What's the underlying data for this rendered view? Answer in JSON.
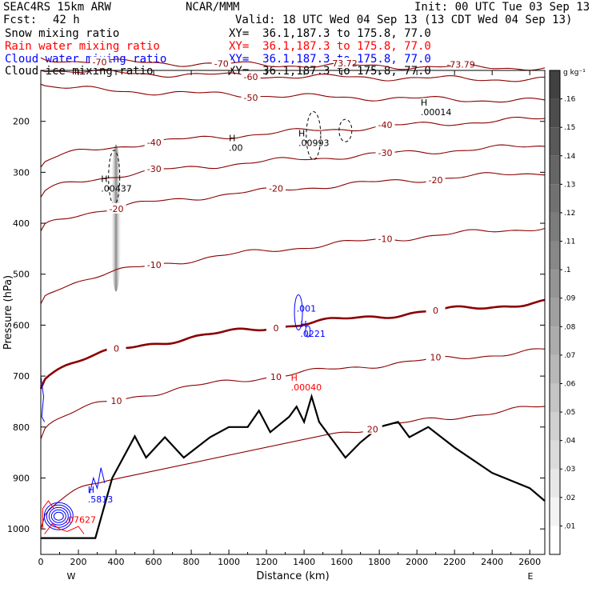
{
  "header": {
    "model": "SEAC4RS 15km ARW",
    "center": "NCAR/MMM",
    "init": "Init: 00 UTC Tue 03 Sep 13",
    "fcst_label": "Fcst:",
    "fcst_value": "42 h",
    "valid": "Valid: 18 UTC Wed 04 Sep 13 (13 CDT Wed 04 Sep 13)"
  },
  "fields": [
    {
      "name": "Snow mixing ratio",
      "xy": "XY=  36.1,187.3 to 175.8, 77.0",
      "color": "#000000"
    },
    {
      "name": "Rain water mixing ratio",
      "xy": "XY=  36.1,187.3 to 175.8, 77.0",
      "color": "#ff0000"
    },
    {
      "name": "Cloud water mixing ratio",
      "xy": "XY=  36.1,187.3 to 175.8, 77.0",
      "color": "#0000ff"
    },
    {
      "name": "Cloud ice mixing ratio",
      "xy": "XY=  36.1,187.3 to 175.8, 77.0",
      "color": "#000000"
    }
  ],
  "colorbar": {
    "unit": "g kg⁻¹",
    "ticks": [
      ".01",
      ".02",
      ".03",
      ".04",
      ".05",
      ".06",
      ".07",
      ".08",
      ".09",
      ".1",
      ".11",
      ".12",
      ".13",
      ".14",
      ".15",
      ".16"
    ]
  },
  "chart_data": {
    "type": "cross-section",
    "xlabel": "Distance (km)",
    "ylabel": "Pressure (hPa)",
    "xlim": [
      0,
      2680
    ],
    "ylim": [
      1050,
      100
    ],
    "x_ticks": [
      0,
      200,
      400,
      600,
      800,
      1000,
      1200,
      1400,
      1600,
      1800,
      2000,
      2200,
      2400,
      2600
    ],
    "y_ticks": [
      200,
      300,
      400,
      500,
      600,
      700,
      800,
      900,
      1000
    ],
    "x_end_labels": {
      "left": "W",
      "right": "E"
    },
    "temperature_isotherms_C": [
      {
        "T": -70,
        "p_left": 75,
        "p_right": 95,
        "labels": [
          "-70",
          "-70",
          "-73.72",
          "-73.79"
        ]
      },
      {
        "T": -60,
        "p_left": 95,
        "p_right": 118,
        "labels": [
          "-60"
        ]
      },
      {
        "T": -50,
        "p_left": 125,
        "p_right": 160,
        "labels": [
          "-50"
        ]
      },
      {
        "T": -40,
        "p_left": 290,
        "p_right": 195,
        "labels": [
          "-40",
          "-40"
        ]
      },
      {
        "T": -30,
        "p_left": 350,
        "p_right": 248,
        "labels": [
          "-30",
          "-30"
        ]
      },
      {
        "T": -20,
        "p_left": 420,
        "p_right": 300,
        "labels": [
          "-20",
          "-20",
          "-20"
        ]
      },
      {
        "T": -10,
        "p_left": 560,
        "p_right": 408,
        "labels": [
          "-10",
          "-10"
        ]
      },
      {
        "T": 0,
        "p_left": 720,
        "p_right": 555,
        "labels": [
          "0",
          "0",
          "0"
        ]
      },
      {
        "T": 10,
        "p_left": 820,
        "p_right": 650,
        "labels": [
          "10",
          "10",
          "10"
        ]
      },
      {
        "T": 20,
        "p_left": 1000,
        "p_right": 760,
        "labels": [
          "20"
        ]
      }
    ],
    "terrain_hPa": [
      [
        0,
        1018
      ],
      [
        290,
        1018
      ],
      [
        380,
        900
      ],
      [
        500,
        818
      ],
      [
        560,
        860
      ],
      [
        660,
        820
      ],
      [
        760,
        860
      ],
      [
        900,
        820
      ],
      [
        1000,
        800
      ],
      [
        1100,
        800
      ],
      [
        1160,
        768
      ],
      [
        1220,
        810
      ],
      [
        1320,
        780
      ],
      [
        1360,
        760
      ],
      [
        1400,
        790
      ],
      [
        1440,
        740
      ],
      [
        1480,
        790
      ],
      [
        1540,
        820
      ],
      [
        1620,
        860
      ],
      [
        1700,
        830
      ],
      [
        1800,
        800
      ],
      [
        1900,
        790
      ],
      [
        1960,
        820
      ],
      [
        2060,
        800
      ],
      [
        2200,
        840
      ],
      [
        2400,
        890
      ],
      [
        2600,
        920
      ],
      [
        2680,
        945
      ]
    ],
    "maxima": [
      {
        "label": "H",
        "value": ".00437",
        "x_km": 320,
        "p_hPa": 335,
        "field": "Cloud ice"
      },
      {
        "label": "H",
        "value": ".00",
        "x_km": 1000,
        "p_hPa": 255,
        "field": "Cloud ice"
      },
      {
        "label": "H",
        "value": ".00993",
        "x_km": 1370,
        "p_hPa": 245,
        "field": "Cloud ice"
      },
      {
        "label": "H",
        "value": ".00014",
        "x_km": 2020,
        "p_hPa": 185,
        "field": "Cloud ice"
      },
      {
        "label": "",
        "value": ".001",
        "x_km": 1360,
        "p_hPa": 570,
        "field": "Cloud water"
      },
      {
        "label": "H",
        "value": ".0221",
        "x_km": 1380,
        "p_hPa": 620,
        "field": "Cloud water"
      },
      {
        "label": "H",
        "value": ".5813",
        "x_km": 250,
        "p_hPa": 945,
        "field": "Cloud water"
      },
      {
        "label": "H",
        "value": ".00040",
        "x_km": 1330,
        "p_hPa": 725,
        "field": "Rain water"
      },
      {
        "label": "",
        "value": ".07627",
        "x_km": 130,
        "p_hPa": 985,
        "field": "Rain water"
      }
    ]
  }
}
